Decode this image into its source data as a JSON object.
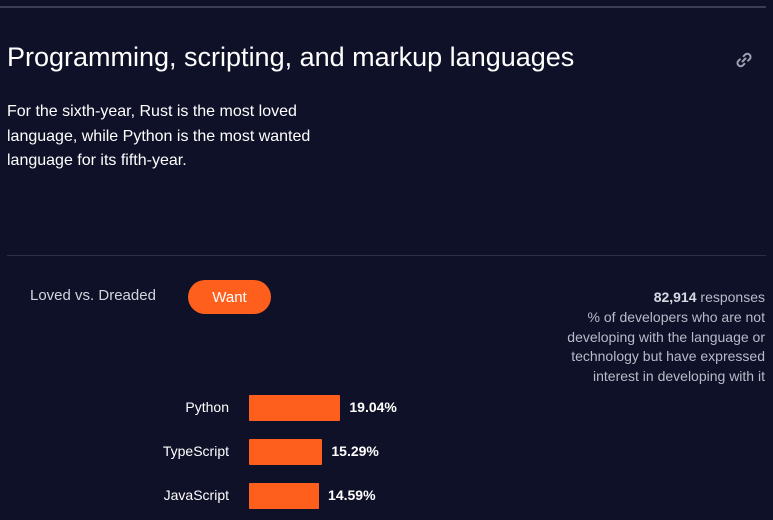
{
  "section": {
    "title": "Programming, scripting, and markup languages",
    "link_icon": "link-icon",
    "intro": "For the sixth-year, Rust is the most loved language, while Python is the most wanted language for its fifth-year."
  },
  "tabs": [
    {
      "label": "Loved vs. Dreaded",
      "active": false
    },
    {
      "label": "Want",
      "active": true
    }
  ],
  "note": {
    "responses_count": "82,914",
    "responses_label": "responses",
    "description": "% of developers who are not developing with the language or technology but have expressed interest in developing with it"
  },
  "colors": {
    "background": "#0f1128",
    "accent": "#fe5f1c"
  },
  "chart_data": {
    "type": "bar",
    "orientation": "horizontal",
    "categories": [
      "Python",
      "TypeScript",
      "JavaScript"
    ],
    "values": [
      19.04,
      15.29,
      14.59
    ],
    "value_labels": [
      "19.04%",
      "15.29%",
      "14.59%"
    ]
  }
}
